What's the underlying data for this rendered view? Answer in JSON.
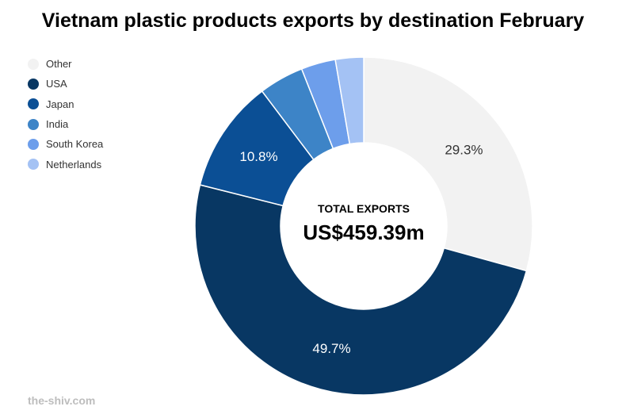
{
  "chart_data": {
    "type": "donut",
    "title": "Vietnam plastic products exports by destination February",
    "center": {
      "caption": "TOTAL EXPORTS",
      "value": "US$459.39m"
    },
    "legend_position": "top-left",
    "slices": [
      {
        "name": "Other",
        "value": 29.3,
        "label": "29.3%",
        "color": "#f2f2f2",
        "label_color": "#333333"
      },
      {
        "name": "USA",
        "value": 49.7,
        "label": "49.7%",
        "color": "#083763",
        "label_color": "#ffffff"
      },
      {
        "name": "Japan",
        "value": 10.8,
        "label": "10.8%",
        "color": "#0b4f95",
        "label_color": "#ffffff"
      },
      {
        "name": "India",
        "value": 4.3,
        "label": "",
        "color": "#3d84c7",
        "label_color": "#ffffff"
      },
      {
        "name": "South Korea",
        "value": 3.3,
        "label": "",
        "color": "#6d9eeb",
        "label_color": "#ffffff"
      },
      {
        "name": "Netherlands",
        "value": 2.7,
        "label": "",
        "color": "#a4c2f4",
        "label_color": "#ffffff"
      }
    ]
  },
  "watermark": "the-shiv.com"
}
